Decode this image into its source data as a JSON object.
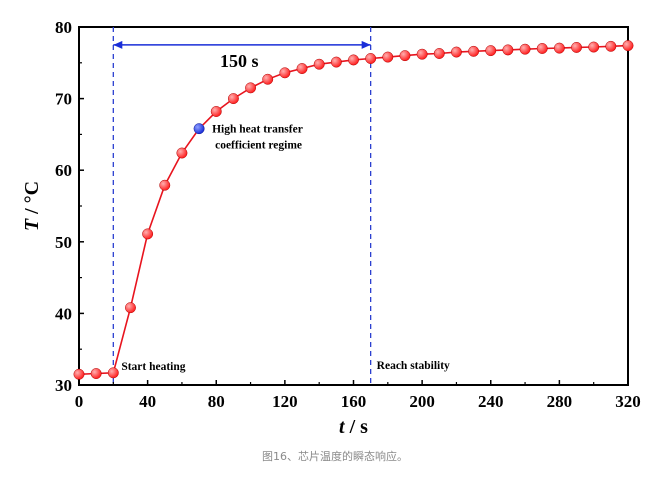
{
  "chart_data": {
    "type": "line",
    "xlabel_var": "t",
    "xlabel_unit": " / s",
    "ylabel_var": "T",
    "ylabel_unit": " / °C",
    "xlim": [
      0,
      320
    ],
    "ylim": [
      30,
      80
    ],
    "xticks": [
      0,
      40,
      80,
      120,
      160,
      200,
      240,
      280,
      320
    ],
    "yticks": [
      30,
      40,
      50,
      60,
      70,
      80
    ],
    "colors": {
      "line": "#e8141e",
      "marker": "#ff2020",
      "highlight": "#1a2ed8",
      "guide": "#2b3fd0",
      "arrow": "#1a2ed8"
    },
    "series": [
      {
        "x": [
          0,
          10,
          20,
          30,
          40,
          50,
          60,
          70,
          80,
          90,
          100,
          110,
          120,
          130,
          140,
          150,
          160,
          170,
          180,
          190,
          200,
          210,
          220,
          230,
          240,
          250,
          260,
          270,
          280,
          290,
          300,
          310,
          320
        ],
        "y": [
          31.5,
          31.6,
          31.7,
          40.8,
          51.1,
          57.9,
          62.4,
          65.8,
          68.2,
          70.0,
          71.5,
          72.7,
          73.6,
          74.2,
          74.8,
          75.1,
          75.4,
          75.6,
          75.8,
          76.0,
          76.2,
          76.3,
          76.5,
          76.6,
          76.7,
          76.8,
          76.9,
          77.0,
          77.05,
          77.15,
          77.2,
          77.3,
          77.4
        ]
      }
    ],
    "highlight_point": {
      "x": 70,
      "y": 65.8
    },
    "guide_lines_x": [
      20,
      170
    ],
    "span_arrow": {
      "x_from": 20,
      "x_to": 170,
      "y": 77.5,
      "label": "150 s"
    },
    "annotations": {
      "start": "Start heating",
      "stable": "Reach stability",
      "regime_line1": "High heat transfer",
      "regime_line2": "coefficient regime"
    }
  },
  "caption": "图16、芯片温度的瞬态响应。"
}
